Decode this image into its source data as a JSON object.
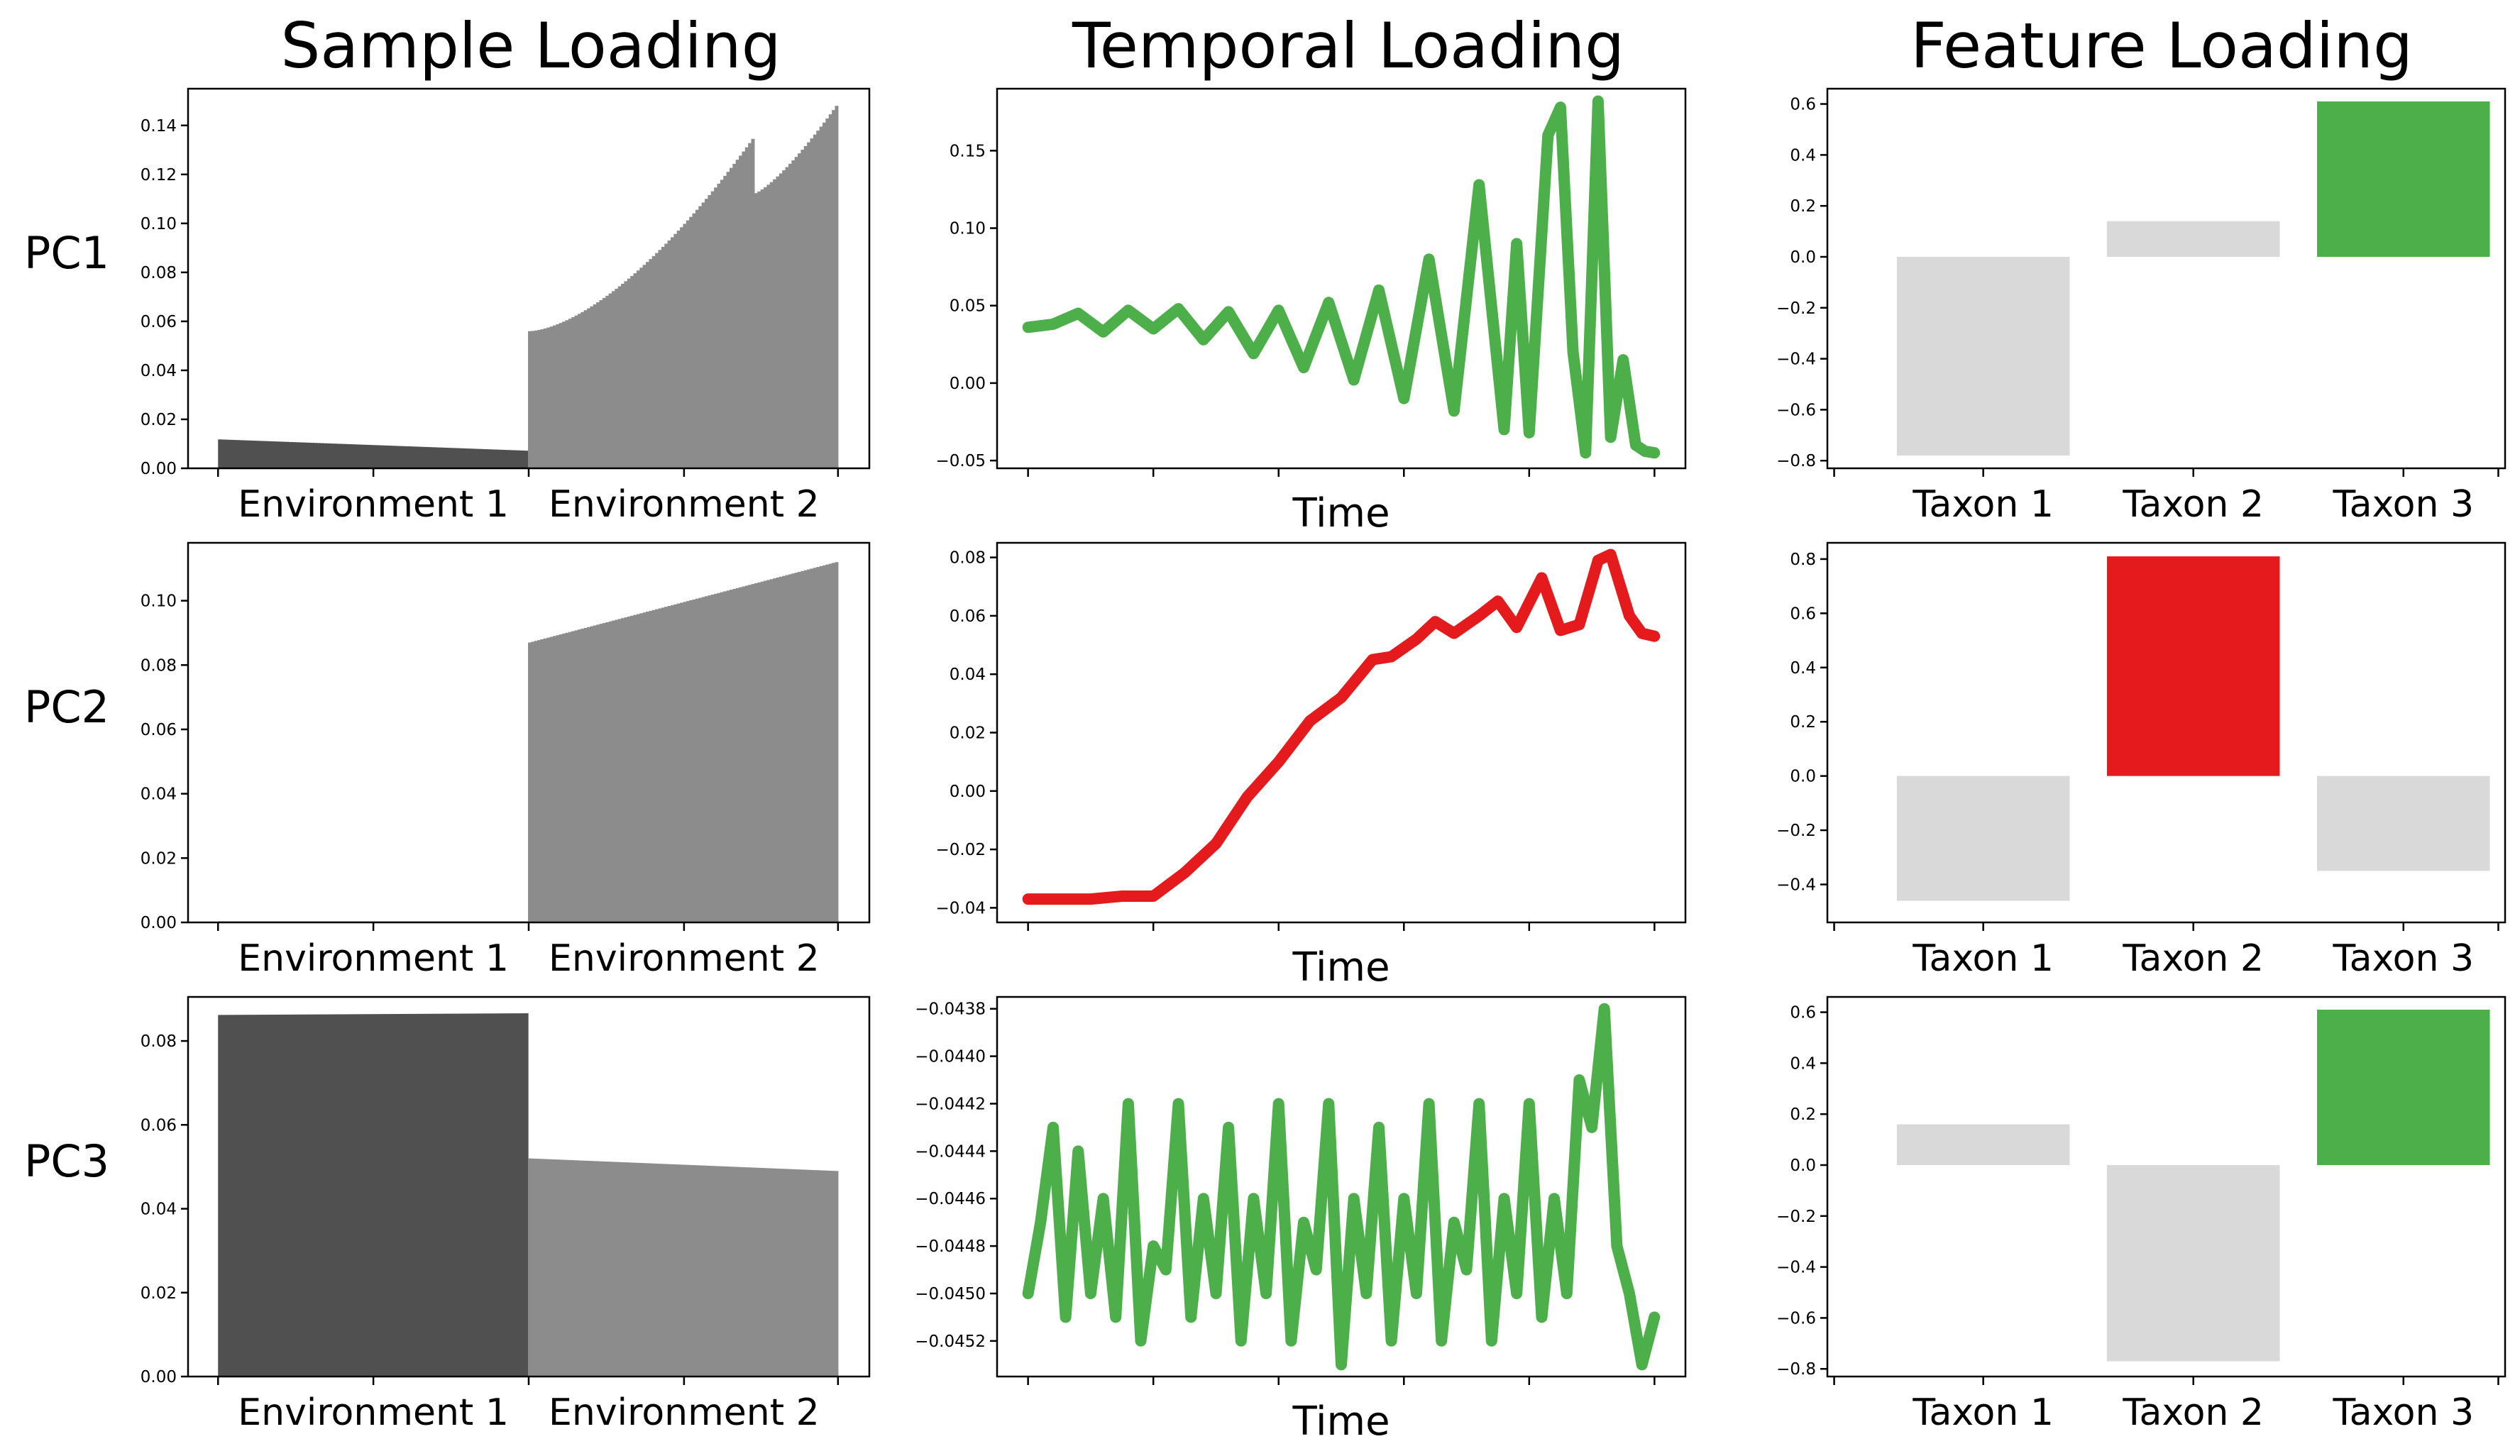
{
  "titles": {
    "sample": "Sample Loading",
    "temporal": "Temporal Loading",
    "feature": "Feature Loading"
  },
  "rows": [
    "PC1",
    "PC2",
    "PC3"
  ],
  "colors": {
    "env1": "#505050",
    "env2": "#8c8c8c",
    "neutral": "#d9d9d9",
    "green": "#4daf4a",
    "red": "#e41a1c"
  },
  "chart_data": [
    {
      "type": "bar",
      "panel": "sample",
      "row": "PC1",
      "groups": [
        {
          "name": "Environment 1",
          "start": 0.0118,
          "end": 0.0072,
          "color": "#505050"
        },
        {
          "name": "Environment 2",
          "start": 0.056,
          "end": 0.148,
          "color": "#8c8c8c",
          "dip_at": 0.73,
          "dip_peak": 0.135,
          "dip_after": 0.112
        }
      ],
      "xticks": [
        "Environment 1",
        "Environment 2"
      ],
      "ylim": [
        0,
        0.155
      ],
      "yticks": [
        "0.00",
        "0.02",
        "0.04",
        "0.06",
        "0.08",
        "0.10",
        "0.12",
        "0.14"
      ]
    },
    {
      "type": "line",
      "panel": "temporal",
      "row": "PC1",
      "color": "#4daf4a",
      "xlabel": "Time",
      "ylim": [
        -0.055,
        0.19
      ],
      "yticks": [
        "−0.05",
        "0.00",
        "0.05",
        "0.10",
        "0.15"
      ],
      "x": [
        0,
        0.04,
        0.08,
        0.12,
        0.16,
        0.2,
        0.24,
        0.28,
        0.32,
        0.36,
        0.4,
        0.44,
        0.48,
        0.52,
        0.56,
        0.6,
        0.64,
        0.68,
        0.72,
        0.76,
        0.78,
        0.8,
        0.83,
        0.85,
        0.87,
        0.89,
        0.91,
        0.93,
        0.95,
        0.97,
        0.985,
        1.0
      ],
      "y": [
        0.036,
        0.038,
        0.045,
        0.033,
        0.047,
        0.035,
        0.048,
        0.028,
        0.046,
        0.019,
        0.047,
        0.01,
        0.052,
        0.002,
        0.06,
        -0.01,
        0.08,
        -0.018,
        0.128,
        -0.03,
        0.09,
        -0.032,
        0.16,
        0.178,
        0.02,
        -0.045,
        0.182,
        -0.035,
        0.015,
        -0.04,
        -0.044,
        -0.045
      ]
    },
    {
      "type": "bar",
      "panel": "feature",
      "row": "PC1",
      "categories": [
        "Taxon 1",
        "Taxon 2",
        "Taxon 3"
      ],
      "values": [
        -0.78,
        0.14,
        0.61
      ],
      "colors": [
        "#d9d9d9",
        "#d9d9d9",
        "#4daf4a"
      ],
      "ylim": [
        -0.83,
        0.66
      ],
      "yticks": [
        "−0.8",
        "−0.6",
        "−0.4",
        "−0.2",
        "0.0",
        "0.2",
        "0.4",
        "0.6"
      ]
    },
    {
      "type": "bar",
      "panel": "sample",
      "row": "PC2",
      "groups": [
        {
          "name": "Environment 1",
          "start": 0.0003,
          "end": 0.0003,
          "color": "#505050"
        },
        {
          "name": "Environment 2",
          "start": 0.087,
          "end": 0.112,
          "color": "#8c8c8c"
        }
      ],
      "xticks": [
        "Environment 1",
        "Environment 2"
      ],
      "ylim": [
        0,
        0.118
      ],
      "yticks": [
        "0.00",
        "0.02",
        "0.04",
        "0.06",
        "0.08",
        "0.10"
      ]
    },
    {
      "type": "line",
      "panel": "temporal",
      "row": "PC2",
      "color": "#e41a1c",
      "xlabel": "Time",
      "ylim": [
        -0.045,
        0.085
      ],
      "yticks": [
        "−0.04",
        "−0.02",
        "0.00",
        "0.02",
        "0.04",
        "0.06",
        "0.08"
      ],
      "x": [
        0,
        0.05,
        0.1,
        0.15,
        0.2,
        0.25,
        0.3,
        0.35,
        0.4,
        0.45,
        0.5,
        0.55,
        0.58,
        0.62,
        0.65,
        0.68,
        0.72,
        0.75,
        0.78,
        0.82,
        0.85,
        0.88,
        0.91,
        0.93,
        0.96,
        0.98,
        1.0
      ],
      "y": [
        -0.037,
        -0.037,
        -0.037,
        -0.036,
        -0.036,
        -0.028,
        -0.018,
        -0.002,
        0.01,
        0.024,
        0.032,
        0.045,
        0.046,
        0.052,
        0.058,
        0.054,
        0.06,
        0.065,
        0.056,
        0.073,
        0.055,
        0.057,
        0.079,
        0.081,
        0.06,
        0.054,
        0.053
      ]
    },
    {
      "type": "bar",
      "panel": "feature",
      "row": "PC2",
      "categories": [
        "Taxon 1",
        "Taxon 2",
        "Taxon 3"
      ],
      "values": [
        -0.46,
        0.81,
        -0.35
      ],
      "colors": [
        "#d9d9d9",
        "#e41a1c",
        "#d9d9d9"
      ],
      "ylim": [
        -0.54,
        0.86
      ],
      "yticks": [
        "−0.4",
        "−0.2",
        "0.0",
        "0.2",
        "0.4",
        "0.6",
        "0.8"
      ]
    },
    {
      "type": "bar",
      "panel": "sample",
      "row": "PC3",
      "groups": [
        {
          "name": "Environment 1",
          "start": 0.0862,
          "end": 0.0866,
          "color": "#505050"
        },
        {
          "name": "Environment 2",
          "start": 0.052,
          "end": 0.049,
          "color": "#8c8c8c"
        }
      ],
      "xticks": [
        "Environment 1",
        "Environment 2"
      ],
      "ylim": [
        0,
        0.0905
      ],
      "yticks": [
        "0.00",
        "0.02",
        "0.04",
        "0.06",
        "0.08"
      ]
    },
    {
      "type": "line",
      "panel": "temporal",
      "row": "PC3",
      "color": "#4daf4a",
      "xlabel": "Time",
      "ylim": [
        -0.04535,
        -0.04375
      ],
      "yticks": [
        "−0.0452",
        "−0.0450",
        "−0.0448",
        "−0.0446",
        "−0.0444",
        "−0.0442",
        "−0.0440",
        "−0.0438"
      ],
      "x": [
        0,
        0.02,
        0.04,
        0.06,
        0.08,
        0.1,
        0.12,
        0.14,
        0.16,
        0.18,
        0.2,
        0.22,
        0.24,
        0.26,
        0.28,
        0.3,
        0.32,
        0.34,
        0.36,
        0.38,
        0.4,
        0.42,
        0.44,
        0.46,
        0.48,
        0.5,
        0.52,
        0.54,
        0.56,
        0.58,
        0.6,
        0.62,
        0.64,
        0.66,
        0.68,
        0.7,
        0.72,
        0.74,
        0.76,
        0.78,
        0.8,
        0.82,
        0.84,
        0.86,
        0.88,
        0.9,
        0.92,
        0.94,
        0.96,
        0.98,
        1.0
      ],
      "y": [
        -0.045,
        -0.0447,
        -0.0443,
        -0.0451,
        -0.0444,
        -0.045,
        -0.0446,
        -0.0451,
        -0.0442,
        -0.0452,
        -0.0448,
        -0.0449,
        -0.0442,
        -0.0451,
        -0.0446,
        -0.045,
        -0.0443,
        -0.0452,
        -0.0446,
        -0.045,
        -0.0442,
        -0.0452,
        -0.0447,
        -0.0449,
        -0.0442,
        -0.0453,
        -0.0446,
        -0.045,
        -0.0443,
        -0.0452,
        -0.0446,
        -0.045,
        -0.0442,
        -0.0452,
        -0.0447,
        -0.0449,
        -0.0442,
        -0.0452,
        -0.0446,
        -0.045,
        -0.0442,
        -0.0451,
        -0.0446,
        -0.045,
        -0.0441,
        -0.0443,
        -0.0438,
        -0.0448,
        -0.045,
        -0.0453,
        -0.0451
      ]
    },
    {
      "type": "bar",
      "panel": "feature",
      "row": "PC3",
      "categories": [
        "Taxon 1",
        "Taxon 2",
        "Taxon 3"
      ],
      "values": [
        0.16,
        -0.77,
        0.61
      ],
      "colors": [
        "#d9d9d9",
        "#d9d9d9",
        "#4daf4a"
      ],
      "ylim": [
        -0.83,
        0.66
      ],
      "yticks": [
        "−0.8",
        "−0.6",
        "−0.4",
        "−0.2",
        "0.0",
        "0.2",
        "0.4",
        "0.6"
      ]
    }
  ]
}
